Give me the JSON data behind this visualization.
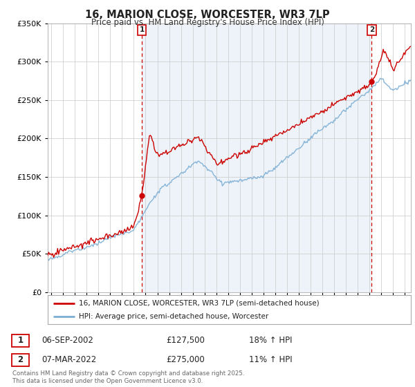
{
  "title": "16, MARION CLOSE, WORCESTER, WR3 7LP",
  "subtitle": "Price paid vs. HM Land Registry's House Price Index (HPI)",
  "legend_line1": "16, MARION CLOSE, WORCESTER, WR3 7LP (semi-detached house)",
  "legend_line2": "HPI: Average price, semi-detached house, Worcester",
  "footer": "Contains HM Land Registry data © Crown copyright and database right 2025.\nThis data is licensed under the Open Government Licence v3.0.",
  "transaction1": {
    "label": "1",
    "date": "06-SEP-2002",
    "price": "£127,500",
    "hpi_pct": "18% ↑ HPI"
  },
  "transaction2": {
    "label": "2",
    "date": "07-MAR-2022",
    "price": "£275,000",
    "hpi_pct": "11% ↑ HPI"
  },
  "property_color": "#cc0000",
  "hpi_color": "#7aadd4",
  "vline_color": "#cc0000",
  "shade_color": "#dce9f5",
  "background_color": "#ffffff",
  "grid_color": "#c8c8c8",
  "ylim": [
    0,
    350000
  ],
  "yticks": [
    0,
    50000,
    100000,
    150000,
    200000,
    250000,
    300000,
    350000
  ],
  "xlim_start": 1994.7,
  "xlim_end": 2025.5,
  "transaction1_x": 2002.68,
  "transaction2_x": 2022.18
}
